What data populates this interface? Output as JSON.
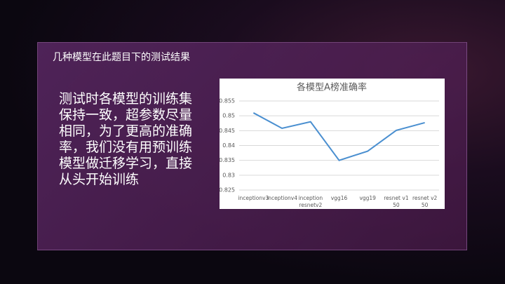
{
  "slide_title": "几种模型在此题目下的测试结果",
  "body_text": "测试时各模型的训练集保持一致，超参数尽量相同，为了更高的准确率，我们没有用预训练模型做迁移学习，直接从头开始训练",
  "chart_data": {
    "type": "line",
    "title": "各模型A榜准确率",
    "categories": [
      "inceptionv3",
      "inceptionv4",
      "inception resnetv2",
      "vgg16",
      "vgg19",
      "resnet v1 50",
      "resnet v2 50"
    ],
    "values": [
      0.851,
      0.8458,
      0.848,
      0.835,
      0.8381,
      0.8451,
      0.8477
    ],
    "color": "#4a8fd0",
    "ylim": [
      0.825,
      0.855
    ],
    "yticks": [
      0.825,
      0.83,
      0.835,
      0.84,
      0.845,
      0.85,
      0.855
    ],
    "grid": true
  }
}
